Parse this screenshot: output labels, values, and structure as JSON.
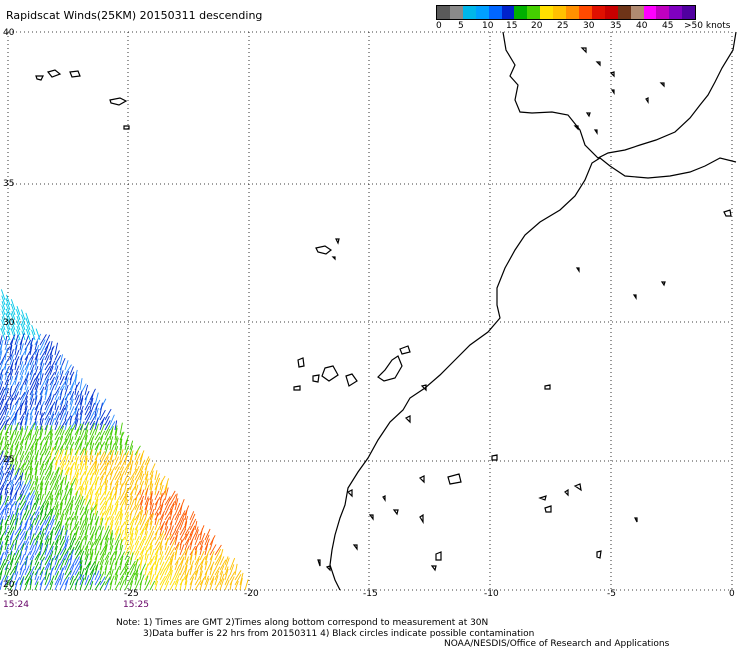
{
  "title": "Rapidscat Winds(25KM) 20150311 descending",
  "legend": {
    "colors": [
      "#5a5a5a",
      "#8a8a8a",
      "#00b7ea",
      "#00a0ff",
      "#0066ff",
      "#0022cc",
      "#00b000",
      "#44d000",
      "#ffe000",
      "#ffc000",
      "#ff9000",
      "#ff4a00",
      "#e01000",
      "#c80000",
      "#6e3418",
      "#b08a70",
      "#ff00ff",
      "#c000c0",
      "#8000c0",
      "#5000a0"
    ],
    "tick_labels": [
      "0",
      "5",
      "10",
      "15",
      "20",
      "25",
      "30",
      "35",
      "40",
      "45",
      ">50 knots"
    ]
  },
  "lat_labels": [
    "40",
    "35",
    "30",
    "25",
    "20"
  ],
  "lon_labels": [
    "-30",
    "-25",
    "-20",
    "-15",
    "-10",
    "-5",
    "0"
  ],
  "time_labels": [
    "15:24",
    "15:25"
  ],
  "notes": [
    "Note: 1) Times are GMT 2)Times along bottom correspond to measurement at 30N",
    "3)Data buffer is 22 hrs from 20150311 4) Black circles indicate possible contamination",
    "NOAA/NESDIS/Office of Research and Applications"
  ]
}
